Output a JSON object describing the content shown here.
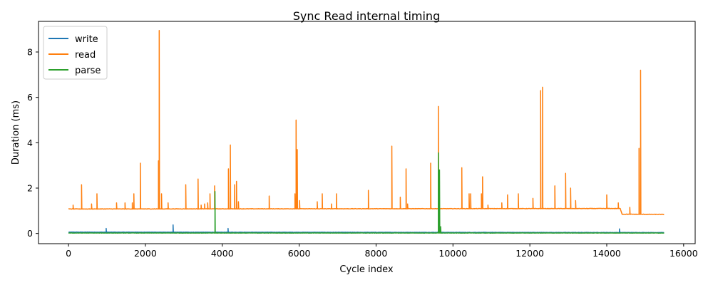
{
  "chart_data": {
    "type": "line",
    "title": "Sync Read internal timing",
    "xlabel": "Cycle index",
    "ylabel": "Duration (ms)",
    "xlim": [
      -780,
      16300
    ],
    "ylim": [
      -0.45,
      9.35
    ],
    "xticks": [
      0,
      2000,
      4000,
      6000,
      8000,
      10000,
      12000,
      14000,
      16000
    ],
    "yticks": [
      0,
      2,
      4,
      6,
      8
    ],
    "grid": false,
    "legend_position": "top-left",
    "x_max": 15500,
    "series": [
      {
        "name": "write",
        "color": "#1f77b4",
        "baseline": [
          [
            0,
            0.06
          ],
          [
            15500,
            0.04
          ]
        ],
        "spikes": [
          [
            980,
            0.22
          ],
          [
            2720,
            0.38
          ],
          [
            4150,
            0.22
          ],
          [
            9630,
            0.35
          ],
          [
            14330,
            0.2
          ]
        ]
      },
      {
        "name": "read",
        "color": "#ff7f0e",
        "baseline": [
          [
            0,
            1.08
          ],
          [
            14350,
            1.1
          ],
          [
            14400,
            0.85
          ],
          [
            15500,
            0.84
          ]
        ],
        "spikes": [
          [
            120,
            1.25
          ],
          [
            340,
            2.15
          ],
          [
            600,
            1.3
          ],
          [
            740,
            1.75
          ],
          [
            1250,
            1.35
          ],
          [
            1470,
            1.35
          ],
          [
            1660,
            1.35
          ],
          [
            1700,
            1.75
          ],
          [
            1870,
            3.1
          ],
          [
            2340,
            3.2
          ],
          [
            2360,
            8.95
          ],
          [
            2420,
            1.75
          ],
          [
            2590,
            1.35
          ],
          [
            3050,
            2.15
          ],
          [
            3370,
            2.4
          ],
          [
            3450,
            1.25
          ],
          [
            3540,
            1.3
          ],
          [
            3620,
            1.35
          ],
          [
            3680,
            1.75
          ],
          [
            3800,
            2.1
          ],
          [
            4160,
            2.85
          ],
          [
            4210,
            3.9
          ],
          [
            4320,
            2.15
          ],
          [
            4370,
            2.3
          ],
          [
            4420,
            1.4
          ],
          [
            5220,
            1.65
          ],
          [
            5890,
            1.75
          ],
          [
            5920,
            5.0
          ],
          [
            5950,
            3.7
          ],
          [
            6010,
            1.45
          ],
          [
            6470,
            1.4
          ],
          [
            6600,
            1.75
          ],
          [
            6840,
            1.3
          ],
          [
            6970,
            1.75
          ],
          [
            7800,
            1.9
          ],
          [
            8410,
            3.85
          ],
          [
            8630,
            1.6
          ],
          [
            8780,
            2.85
          ],
          [
            8820,
            1.3
          ],
          [
            9420,
            3.1
          ],
          [
            9620,
            5.6
          ],
          [
            10230,
            2.9
          ],
          [
            10420,
            1.75
          ],
          [
            10460,
            1.75
          ],
          [
            10740,
            1.75
          ],
          [
            10770,
            2.5
          ],
          [
            10910,
            1.25
          ],
          [
            11270,
            1.35
          ],
          [
            11420,
            1.7
          ],
          [
            11700,
            1.75
          ],
          [
            12080,
            1.55
          ],
          [
            12280,
            6.3
          ],
          [
            12330,
            6.45
          ],
          [
            12650,
            2.1
          ],
          [
            12930,
            2.65
          ],
          [
            13060,
            2.0
          ],
          [
            13190,
            1.45
          ],
          [
            14000,
            1.7
          ],
          [
            14300,
            1.35
          ],
          [
            14600,
            1.15
          ],
          [
            14840,
            3.75
          ],
          [
            14880,
            7.2
          ]
        ]
      },
      {
        "name": "parse",
        "color": "#2ca02c",
        "baseline": [
          [
            0,
            0.02
          ],
          [
            15500,
            0.02
          ]
        ],
        "spikes": [
          [
            3810,
            1.85
          ],
          [
            9620,
            3.55
          ],
          [
            9650,
            2.8
          ],
          [
            9680,
            0.3
          ]
        ]
      }
    ]
  }
}
